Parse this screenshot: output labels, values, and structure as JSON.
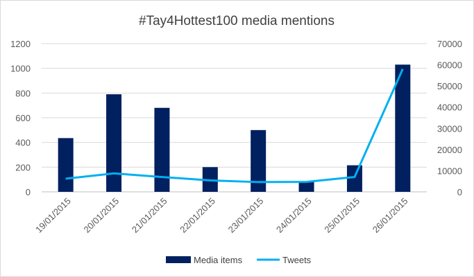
{
  "chart_data": {
    "type": "bar",
    "title": "#Tay4Hottest100 media mentions",
    "categories": [
      "19/01/2015",
      "20/01/2015",
      "21/01/2015",
      "22/01/2015",
      "23/01/2015",
      "24/01/2015",
      "25/01/2015",
      "26/01/2015"
    ],
    "series": [
      {
        "name": "Media items",
        "type": "bar",
        "axis": "left",
        "color": "#002060",
        "values": [
          435,
          790,
          680,
          200,
          500,
          80,
          215,
          1030
        ]
      },
      {
        "name": "Tweets",
        "type": "line",
        "axis": "right",
        "color": "#00b0f0",
        "values": [
          6200,
          8700,
          7000,
          5400,
          4600,
          4700,
          7000,
          58000
        ]
      }
    ],
    "y_left": {
      "min": 0,
      "max": 1200,
      "ticks": [
        "0",
        "200",
        "400",
        "600",
        "800",
        "1000",
        "1200"
      ]
    },
    "y_right": {
      "min": 0,
      "max": 70000,
      "ticks": [
        "0",
        "10000",
        "20000",
        "30000",
        "40000",
        "50000",
        "60000",
        "70000"
      ]
    },
    "grid": true,
    "legend": "bottom"
  }
}
